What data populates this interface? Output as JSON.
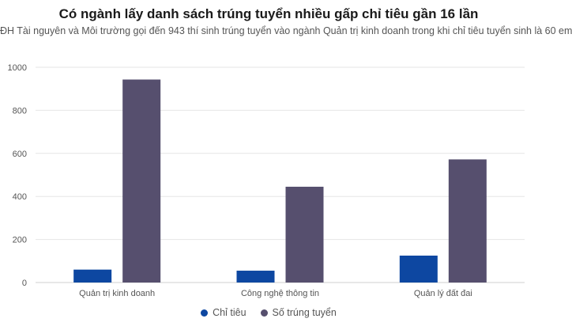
{
  "chart_data": {
    "type": "bar",
    "title": "Có ngành lấy danh sách trúng tuyển nhiều gấp chỉ tiêu gần 16 lần",
    "subtitle": "ĐH Tài nguyên và Môi trường gọi đến 943 thí sinh trúng tuyển vào ngành Quản trị kinh doanh trong khi chỉ tiêu tuyển sinh là 60 em",
    "categories": [
      "Quản trị kinh doanh",
      "Công nghệ thông tin",
      "Quản lý đất đai"
    ],
    "series": [
      {
        "name": "Chỉ tiêu",
        "values": [
          60,
          55,
          125
        ],
        "color": "#0d47a1"
      },
      {
        "name": "Số trúng tuyển",
        "values": [
          943,
          445,
          572
        ],
        "color": "#564f6e"
      }
    ],
    "yticks": [
      0,
      200,
      400,
      600,
      800,
      1000
    ],
    "ylim": [
      0,
      1000
    ],
    "grid": true,
    "legend_position": "bottom-center"
  }
}
